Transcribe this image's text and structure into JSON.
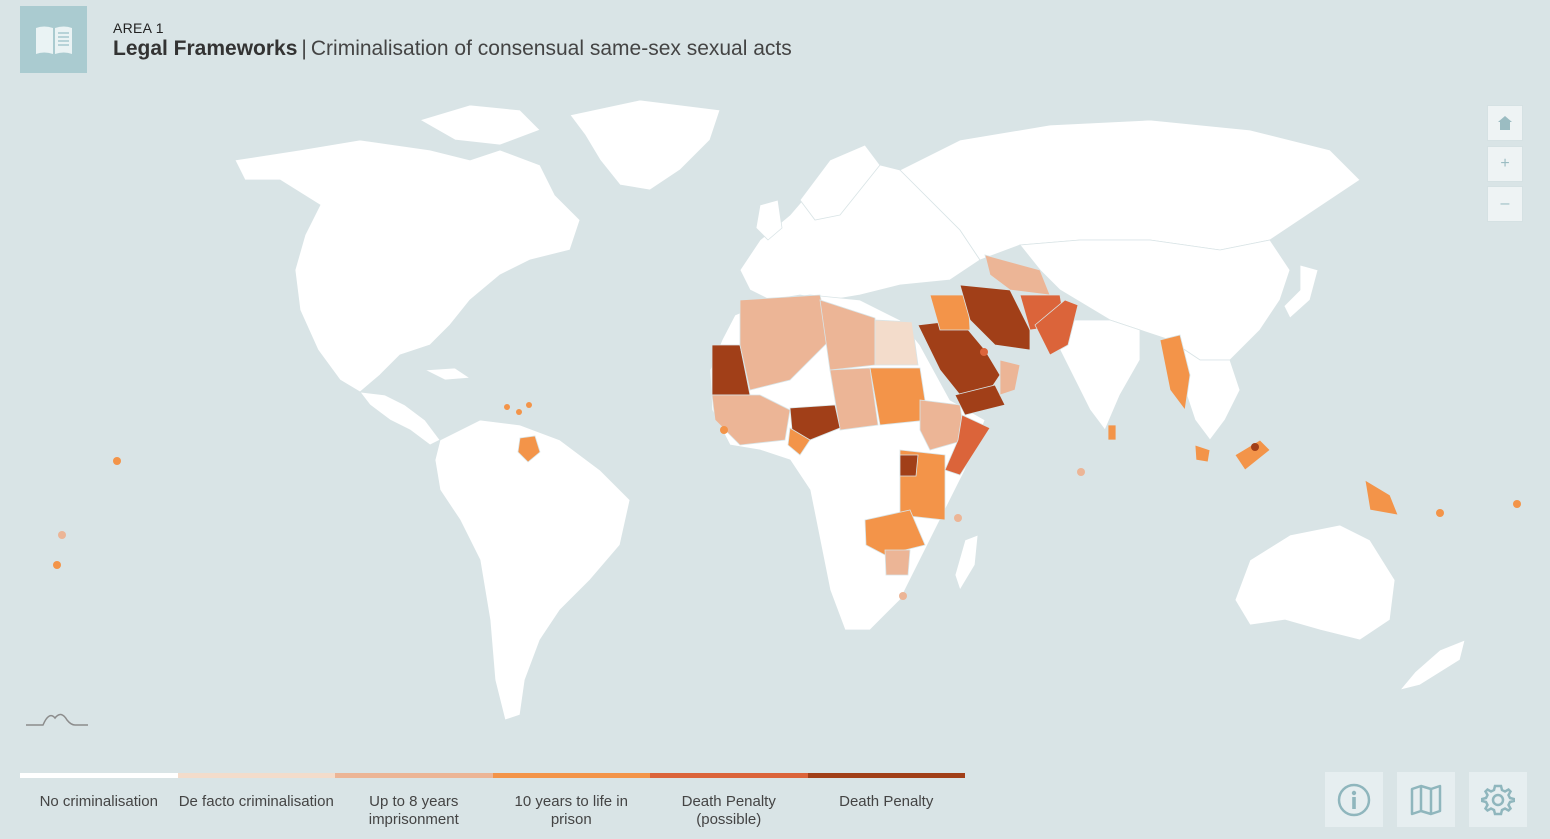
{
  "header": {
    "area": "AREA 1",
    "title_bold": "Legal Frameworks",
    "separator": "|",
    "title_rest": "Criminalisation of consensual same-sex sexual acts"
  },
  "map": {
    "ocean_color": "#d9e4e6",
    "land_color": "#ffffff",
    "categories": [
      {
        "key": "none",
        "label": "No criminalisation",
        "color": "#ffffff"
      },
      {
        "key": "defacto",
        "label": "De facto criminalisation",
        "color": "#f3dccb"
      },
      {
        "key": "up8",
        "label": "Up to 8 years imprisonment",
        "color": "#ecb596"
      },
      {
        "key": "life",
        "label": "10 years to life in prison",
        "color": "#f39449"
      },
      {
        "key": "deathpossible",
        "label": "Death Penalty (possible)",
        "color": "#db643a"
      },
      {
        "key": "death",
        "label": "Death Penalty",
        "color": "#a13f18"
      }
    ]
  },
  "controls": {
    "home_icon": "home-icon",
    "zoom_in": "+",
    "zoom_out": "–"
  },
  "bottom_buttons": [
    "info-icon",
    "map-icon",
    "gear-icon"
  ]
}
